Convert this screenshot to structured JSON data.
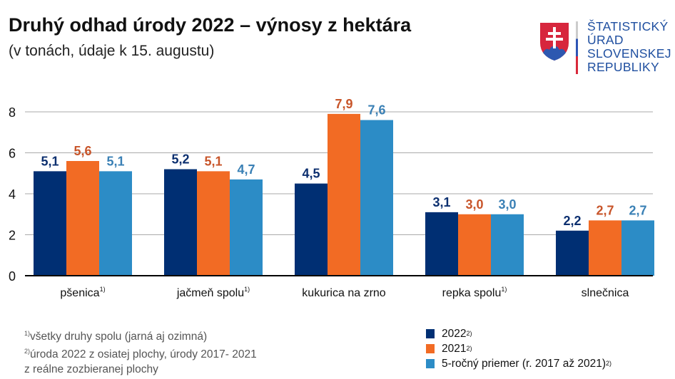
{
  "header": {
    "title": "Druhý odhad úrody 2022 – výnosy z hektára",
    "subtitle": "(v tonách, údaje k 15. augustu)"
  },
  "logo": {
    "lines": [
      "ŠTATISTICKÝ",
      "ÚRAD",
      "SLOVENSKEJ",
      "REPUBLIKY"
    ]
  },
  "chart_data": {
    "type": "bar",
    "title": "Druhý odhad úrody 2022 – výnosy z hektára",
    "subtitle": "(v tonách, údaje k 15. augustu)",
    "categories": [
      "pšenica",
      "jačmeň spolu",
      "kukurica na zrno",
      "repka spolu",
      "slnečnica"
    ],
    "category_notes": [
      "1)",
      "1)",
      "",
      "1)",
      ""
    ],
    "series": [
      {
        "name": "2022",
        "note": "2)",
        "color": "#002f73",
        "label_color": "#0c2f6f",
        "values": [
          5.1,
          5.2,
          4.5,
          3.1,
          2.2
        ]
      },
      {
        "name": "2021",
        "note": "2)",
        "color": "#f26b24",
        "label_color": "#c8552a",
        "values": [
          5.6,
          5.1,
          7.9,
          3.0,
          2.7
        ]
      },
      {
        "name": "5-ročný priemer (r. 2017 až 2021)",
        "note": "2)",
        "color": "#2c8cc6",
        "label_color": "#3a80b5",
        "values": [
          5.1,
          4.7,
          7.6,
          3.0,
          2.7
        ]
      }
    ],
    "ylim": [
      0,
      8
    ],
    "yticks": [
      0,
      2,
      4,
      6,
      8
    ],
    "grid": true,
    "legend": "bottom-right"
  },
  "footnotes": [
    "všetky druhy spolu (jarná aj ozimná)",
    "úroda 2022 z osiatej plochy, úrody 2017- 2021",
    "z reálne zozbieranej plochy"
  ],
  "footnote_marks": [
    "1)",
    "2)"
  ]
}
